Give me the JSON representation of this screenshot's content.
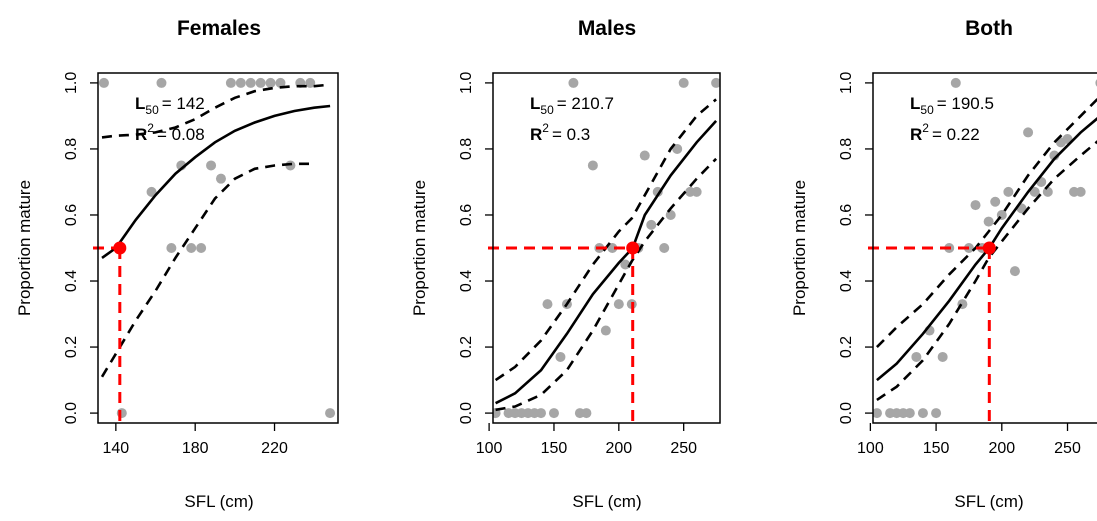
{
  "chart_data": [
    {
      "type": "scatter",
      "title": "Females",
      "xlabel": "SFL (cm)",
      "ylabel": "Proportion mature",
      "xlim": [
        131,
        252
      ],
      "ylim": [
        -0.03,
        1.03
      ],
      "x_ticks": [
        "140",
        "180",
        "220"
      ],
      "x_tick_values": [
        140,
        180,
        220
      ],
      "y_ticks": [
        "0.0",
        "0.2",
        "0.4",
        "0.6",
        "0.8",
        "1.0"
      ],
      "y_tick_values": [
        0,
        0.2,
        0.4,
        0.6,
        0.8,
        1.0
      ],
      "annotation": {
        "l50_symbol": "L",
        "l50_sub": "50",
        "l50_value": "= 142",
        "r2_symbol": "R",
        "r2_sup": "2",
        "r2_value": "= 0.08"
      },
      "l50": 142,
      "points": [
        [
          134,
          1.0
        ],
        [
          143,
          0.0
        ],
        [
          158,
          0.67
        ],
        [
          163,
          1.0
        ],
        [
          168,
          0.5
        ],
        [
          173,
          0.75
        ],
        [
          178,
          0.5
        ],
        [
          183,
          0.5
        ],
        [
          188,
          0.75
        ],
        [
          193,
          0.71
        ],
        [
          198,
          1.0
        ],
        [
          203,
          1.0
        ],
        [
          208,
          1.0
        ],
        [
          213,
          1.0
        ],
        [
          218,
          1.0
        ],
        [
          223,
          1.0
        ],
        [
          228,
          0.75
        ],
        [
          233,
          1.0
        ],
        [
          238,
          1.0
        ],
        [
          248,
          0.0
        ]
      ],
      "fit": [
        [
          133,
          0.47
        ],
        [
          140,
          0.5
        ],
        [
          150,
          0.585
        ],
        [
          160,
          0.66
        ],
        [
          170,
          0.725
        ],
        [
          180,
          0.775
        ],
        [
          190,
          0.82
        ],
        [
          200,
          0.855
        ],
        [
          210,
          0.88
        ],
        [
          220,
          0.9
        ],
        [
          230,
          0.915
        ],
        [
          240,
          0.925
        ],
        [
          248,
          0.93
        ]
      ],
      "ci_lower": [
        [
          133,
          0.11
        ],
        [
          140,
          0.18
        ],
        [
          150,
          0.28
        ],
        [
          160,
          0.37
        ],
        [
          170,
          0.47
        ],
        [
          180,
          0.56
        ],
        [
          190,
          0.65
        ],
        [
          200,
          0.71
        ],
        [
          210,
          0.74
        ],
        [
          220,
          0.75
        ],
        [
          230,
          0.755
        ],
        [
          240,
          0.755
        ]
      ],
      "ci_upper": [
        [
          133,
          0.835
        ],
        [
          140,
          0.84
        ],
        [
          150,
          0.843
        ],
        [
          160,
          0.85
        ],
        [
          170,
          0.865
        ],
        [
          180,
          0.89
        ],
        [
          190,
          0.925
        ],
        [
          200,
          0.955
        ],
        [
          210,
          0.975
        ],
        [
          220,
          0.985
        ],
        [
          230,
          0.99
        ],
        [
          240,
          0.99
        ],
        [
          248,
          0.995
        ]
      ],
      "colors": {
        "points": "#a6a6a6",
        "fit": "#000000",
        "l50": "#ff0000"
      }
    },
    {
      "type": "scatter",
      "title": "Males",
      "xlabel": "SFL (cm)",
      "ylabel": "Proportion mature",
      "xlim": [
        103,
        278
      ],
      "ylim": [
        -0.03,
        1.03
      ],
      "x_ticks": [
        "100",
        "150",
        "200",
        "250"
      ],
      "x_tick_values": [
        100,
        150,
        200,
        250
      ],
      "y_ticks": [
        "0.0",
        "0.2",
        "0.4",
        "0.6",
        "0.8",
        "1.0"
      ],
      "y_tick_values": [
        0,
        0.2,
        0.4,
        0.6,
        0.8,
        1.0
      ],
      "annotation": {
        "l50_symbol": "L",
        "l50_sub": "50",
        "l50_value": "= 210.7",
        "r2_symbol": "R",
        "r2_sup": "2",
        "r2_value": "= 0.3"
      },
      "l50": 210.7,
      "points": [
        [
          105,
          0.0
        ],
        [
          115,
          0.0
        ],
        [
          120,
          0.0
        ],
        [
          125,
          0.0
        ],
        [
          130,
          0.0
        ],
        [
          135,
          0.0
        ],
        [
          140,
          0.0
        ],
        [
          145,
          0.33
        ],
        [
          150,
          0.0
        ],
        [
          155,
          0.17
        ],
        [
          160,
          0.33
        ],
        [
          165,
          1.0
        ],
        [
          170,
          0.0
        ],
        [
          175,
          0.0
        ],
        [
          180,
          0.75
        ],
        [
          185,
          0.5
        ],
        [
          190,
          0.25
        ],
        [
          195,
          0.5
        ],
        [
          200,
          0.33
        ],
        [
          205,
          0.45
        ],
        [
          210,
          0.33
        ],
        [
          215,
          0.5
        ],
        [
          220,
          0.78
        ],
        [
          225,
          0.57
        ],
        [
          230,
          0.67
        ],
        [
          235,
          0.5
        ],
        [
          240,
          0.6
        ],
        [
          245,
          0.8
        ],
        [
          250,
          1.0
        ],
        [
          255,
          0.67
        ],
        [
          260,
          0.67
        ],
        [
          275,
          1.0
        ]
      ],
      "fit": [
        [
          105,
          0.03
        ],
        [
          120,
          0.06
        ],
        [
          140,
          0.13
        ],
        [
          160,
          0.24
        ],
        [
          180,
          0.36
        ],
        [
          200,
          0.455
        ],
        [
          210.7,
          0.5
        ],
        [
          220,
          0.6
        ],
        [
          240,
          0.72
        ],
        [
          260,
          0.82
        ],
        [
          275,
          0.885
        ]
      ],
      "ci_lower": [
        [
          105,
          0.01
        ],
        [
          120,
          0.02
        ],
        [
          140,
          0.055
        ],
        [
          160,
          0.13
        ],
        [
          180,
          0.25
        ],
        [
          200,
          0.39
        ],
        [
          210,
          0.46
        ],
        [
          220,
          0.52
        ],
        [
          240,
          0.62
        ],
        [
          260,
          0.71
        ],
        [
          275,
          0.77
        ]
      ],
      "ci_upper": [
        [
          105,
          0.1
        ],
        [
          120,
          0.14
        ],
        [
          140,
          0.22
        ],
        [
          160,
          0.33
        ],
        [
          180,
          0.45
        ],
        [
          200,
          0.55
        ],
        [
          210,
          0.59
        ],
        [
          220,
          0.66
        ],
        [
          240,
          0.8
        ],
        [
          260,
          0.9
        ],
        [
          275,
          0.95
        ]
      ],
      "colors": {
        "points": "#a6a6a6",
        "fit": "#000000",
        "l50": "#ff0000"
      }
    },
    {
      "type": "scatter",
      "title": "Both",
      "xlabel": "SFL (cm)",
      "ylabel": "Proportion mature",
      "xlim": [
        102,
        277
      ],
      "ylim": [
        -0.03,
        1.03
      ],
      "x_ticks": [
        "100",
        "150",
        "200",
        "250"
      ],
      "x_tick_values": [
        100,
        150,
        200,
        250
      ],
      "y_ticks": [
        "0.0",
        "0.2",
        "0.4",
        "0.6",
        "0.8",
        "1.0"
      ],
      "y_tick_values": [
        0,
        0.2,
        0.4,
        0.6,
        0.8,
        1.0
      ],
      "annotation": {
        "l50_symbol": "L",
        "l50_sub": "50",
        "l50_value": "= 190.5",
        "r2_symbol": "R",
        "r2_sup": "2",
        "r2_value": "= 0.22"
      },
      "l50": 190.5,
      "points": [
        [
          105,
          0.0
        ],
        [
          115,
          0.0
        ],
        [
          120,
          0.0
        ],
        [
          125,
          0.0
        ],
        [
          130,
          0.0
        ],
        [
          135,
          0.17
        ],
        [
          140,
          0.0
        ],
        [
          145,
          0.25
        ],
        [
          150,
          0.0
        ],
        [
          155,
          0.17
        ],
        [
          160,
          0.5
        ],
        [
          165,
          1.0
        ],
        [
          170,
          0.33
        ],
        [
          175,
          0.5
        ],
        [
          180,
          0.63
        ],
        [
          185,
          0.5
        ],
        [
          190,
          0.58
        ],
        [
          195,
          0.64
        ],
        [
          200,
          0.6
        ],
        [
          205,
          0.67
        ],
        [
          210,
          0.43
        ],
        [
          215,
          0.62
        ],
        [
          220,
          0.85
        ],
        [
          225,
          0.67
        ],
        [
          230,
          0.7
        ],
        [
          235,
          0.67
        ],
        [
          240,
          0.78
        ],
        [
          245,
          0.82
        ],
        [
          250,
          0.83
        ],
        [
          255,
          0.67
        ],
        [
          260,
          0.67
        ],
        [
          275,
          1.0
        ]
      ],
      "fit": [
        [
          105,
          0.1
        ],
        [
          120,
          0.15
        ],
        [
          140,
          0.24
        ],
        [
          160,
          0.34
        ],
        [
          180,
          0.45
        ],
        [
          190.5,
          0.5
        ],
        [
          200,
          0.56
        ],
        [
          220,
          0.67
        ],
        [
          240,
          0.77
        ],
        [
          260,
          0.85
        ],
        [
          275,
          0.9
        ]
      ],
      "ci_lower": [
        [
          105,
          0.04
        ],
        [
          120,
          0.08
        ],
        [
          140,
          0.16
        ],
        [
          160,
          0.27
        ],
        [
          180,
          0.4
        ],
        [
          190,
          0.47
        ],
        [
          200,
          0.52
        ],
        [
          220,
          0.62
        ],
        [
          240,
          0.71
        ],
        [
          260,
          0.78
        ],
        [
          275,
          0.83
        ]
      ],
      "ci_upper": [
        [
          105,
          0.2
        ],
        [
          120,
          0.26
        ],
        [
          140,
          0.33
        ],
        [
          160,
          0.42
        ],
        [
          180,
          0.5
        ],
        [
          190,
          0.55
        ],
        [
          200,
          0.6
        ],
        [
          220,
          0.72
        ],
        [
          240,
          0.82
        ],
        [
          260,
          0.9
        ],
        [
          275,
          0.96
        ]
      ],
      "colors": {
        "points": "#a6a6a6",
        "fit": "#000000",
        "l50": "#ff0000"
      }
    }
  ]
}
